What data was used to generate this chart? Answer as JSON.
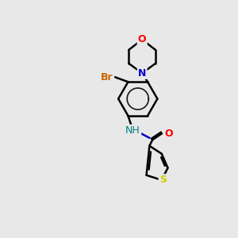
{
  "background_color": "#e8e8e8",
  "bond_color": "#000000",
  "bond_lw": 1.8,
  "atom_colors": {
    "O": "#ff0000",
    "N_morph": "#0000cc",
    "N_amide": "#0000cc",
    "NH": "#008080",
    "S": "#cccc00",
    "Br": "#cc6600"
  },
  "font_size": 9,
  "font_size_small": 8
}
